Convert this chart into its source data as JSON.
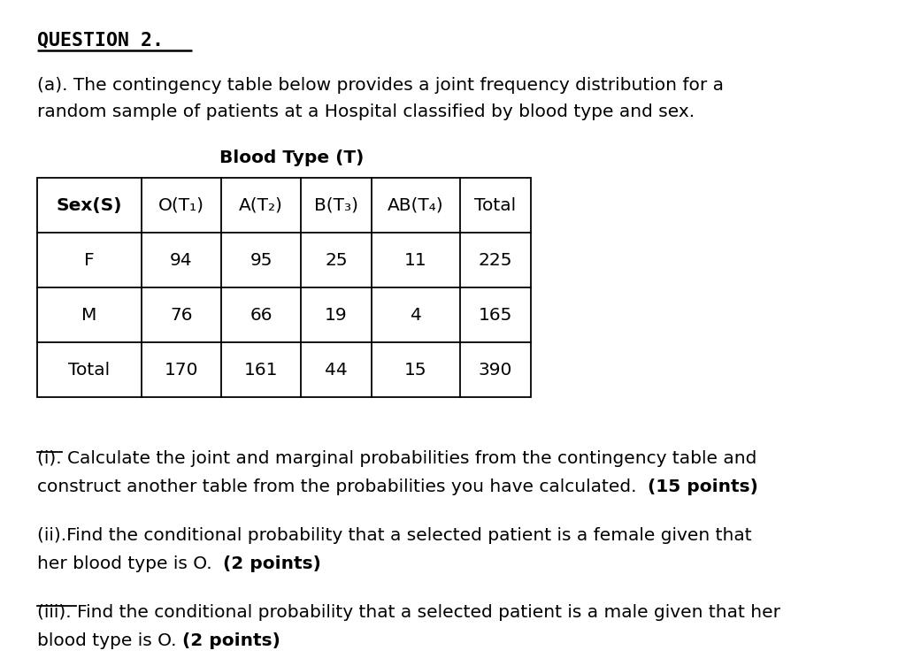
{
  "bg_color": "#ffffff",
  "title_question": "QUESTION 2.",
  "para_a_line1": "(a). The contingency table below provides a joint frequency distribution for a",
  "para_a_line2": "random sample of patients at a Hospital classified by blood type and sex.",
  "table_title": "Blood Type (T)",
  "table_headers": [
    "Sex(S)",
    "O(T₁)",
    "A(T₂)",
    "B(T₃)",
    "AB(T₄)",
    "Total"
  ],
  "table_rows": [
    [
      "F",
      "94",
      "95",
      "25",
      "11",
      "225"
    ],
    [
      "M",
      "76",
      "66",
      "19",
      "4",
      "165"
    ],
    [
      "Total",
      "170",
      "161",
      "44",
      "15",
      "390"
    ]
  ],
  "qi_line1": "(i). Calculate the joint and marginal probabilities from the contingency table and",
  "qi_line2_plain": "construct another table from the probabilities you have calculated.  ",
  "qi_line2_bold": "(15 points)",
  "qii_line1": "(ii).Find the conditional probability that a selected patient is a female given that",
  "qii_line2_plain": "her blood type is O.  ",
  "qii_line2_bold": "(2 points)",
  "qiii_line1": "(iii). Find the conditional probability that a selected patient is a male given that her",
  "qiii_line2_plain": "blood type is O. ",
  "qiii_line2_bold": "(2 points)",
  "font_main": "DejaVu Sans",
  "fontsize_main": 14.5,
  "fontsize_table": 14.5,
  "fontsize_title": 15.5
}
